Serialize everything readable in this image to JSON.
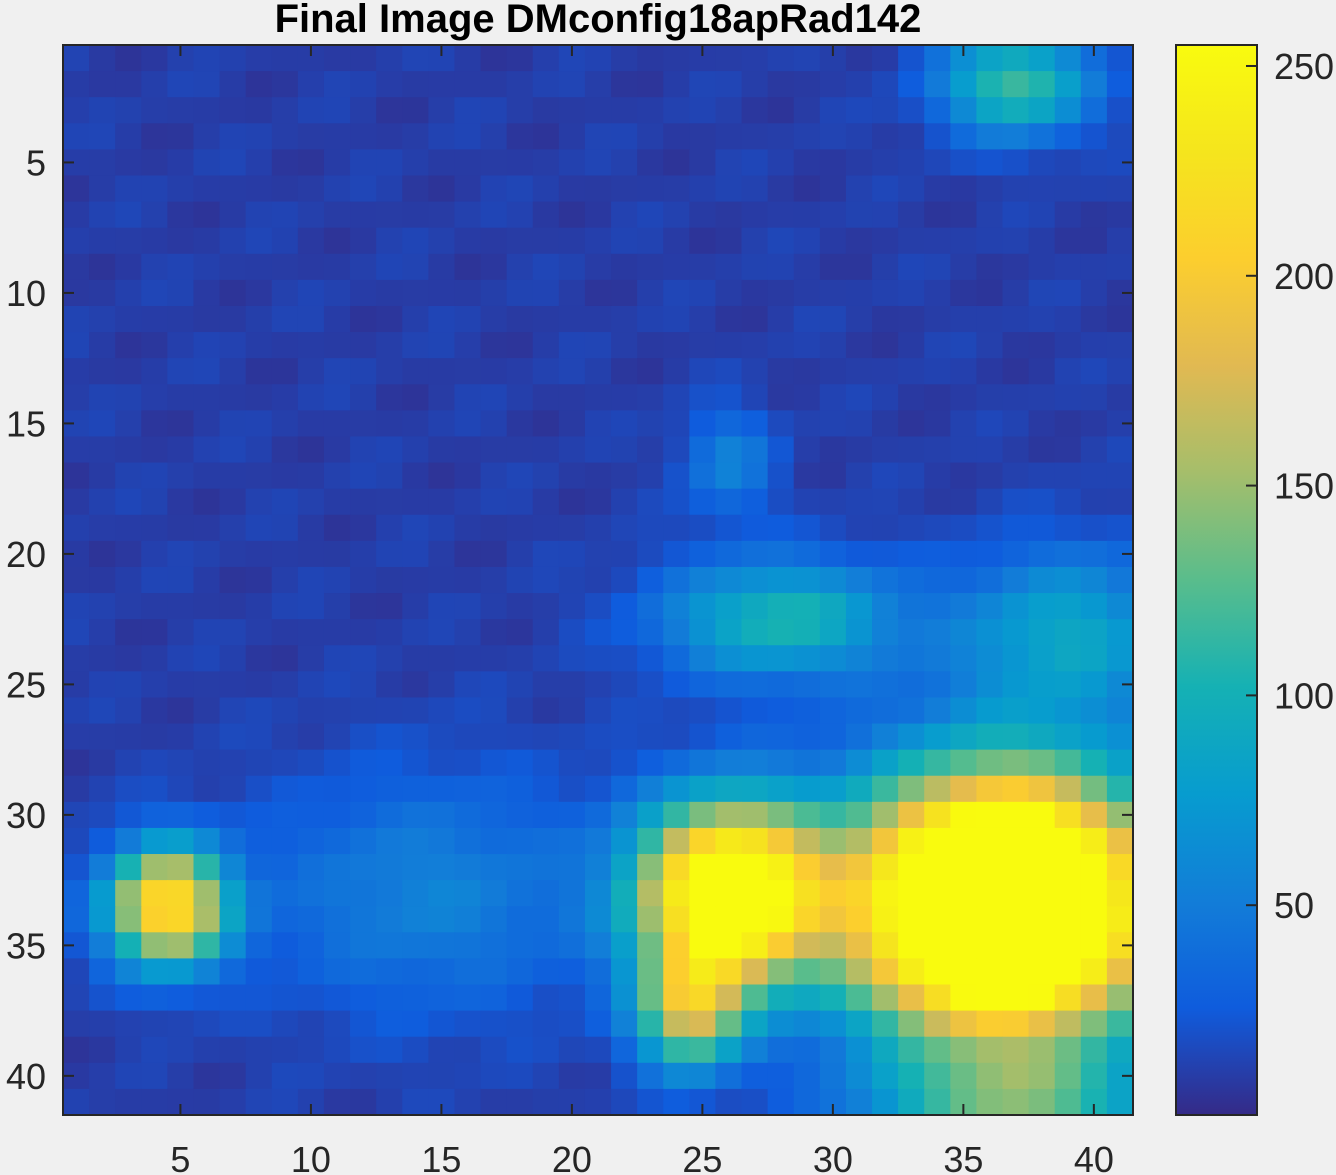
{
  "chart_data": {
    "type": "heatmap",
    "title": "Final Image DMconfig18apRad142",
    "xlabel": "",
    "ylabel": "",
    "xlim": [
      0.5,
      41.5
    ],
    "ylim": [
      0.5,
      41.5
    ],
    "y_reversed": true,
    "x_ticks": [
      5,
      10,
      15,
      20,
      25,
      30,
      35,
      40
    ],
    "y_ticks": [
      5,
      10,
      15,
      20,
      25,
      30,
      35,
      40
    ],
    "colorbar": {
      "range": [
        0,
        255
      ],
      "ticks": [
        50,
        100,
        150,
        200,
        250
      ],
      "colormap": "parula"
    },
    "background_level": 10,
    "blobs": [
      {
        "name": "top-right spot",
        "row": 2,
        "col": 37,
        "sigma_row": 1.4,
        "sigma_col": 2.0,
        "peak": 110
      },
      {
        "name": "mid spot",
        "row": 16.5,
        "col": 26,
        "sigma_row": 1.4,
        "sigma_col": 1.2,
        "peak": 45
      },
      {
        "name": "band centre",
        "row": 22.5,
        "col": 28,
        "sigma_row": 1.6,
        "sigma_col": 3.2,
        "peak": 95
      },
      {
        "name": "band right",
        "row": 23,
        "col": 39,
        "sigma_row": 2.2,
        "sigma_col": 3.0,
        "peak": 75
      },
      {
        "name": "left spot",
        "row": 33.5,
        "col": 4.5,
        "sigma_row": 1.6,
        "sigma_col": 1.6,
        "peak": 220
      },
      {
        "name": "lower-left cloud",
        "row": 33,
        "col": 14.5,
        "sigma_row": 3.2,
        "sigma_col": 4.5,
        "peak": 45
      },
      {
        "name": "centre blob",
        "row": 33,
        "col": 26,
        "sigma_row": 2.4,
        "sigma_col": 2.4,
        "peak": 300
      },
      {
        "name": "centre tail",
        "row": 37.5,
        "col": 24.5,
        "sigma_row": 1.6,
        "sigma_col": 1.4,
        "peak": 150
      },
      {
        "name": "right blob",
        "row": 33.5,
        "col": 36.5,
        "sigma_row": 3.5,
        "sigma_col": 4.0,
        "peak": 430
      },
      {
        "name": "bottom edge",
        "row": 41,
        "col": 37,
        "sigma_row": 1.2,
        "sigma_col": 4.0,
        "peak": 90
      }
    ]
  }
}
